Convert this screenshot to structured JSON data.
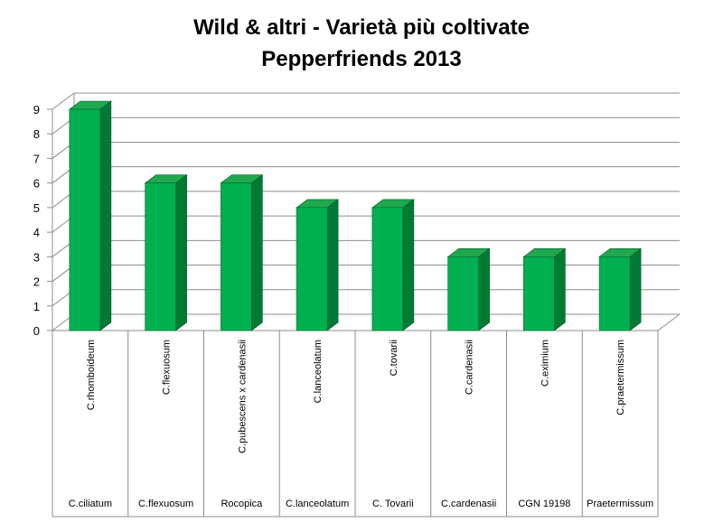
{
  "chart_data": {
    "type": "bar",
    "title": "Wild & altri - Varietà più coltivate",
    "subtitle": "Pepperfriends 2013",
    "categories": [
      "C.rhomboideum",
      "C.flexuosum",
      "C.pubescens x cardenasii",
      "C.lanceolatum",
      "C.tovarii",
      "C.cardenasii",
      "C.eximium",
      "C.praetermissum"
    ],
    "table_labels": [
      "C.ciliatum",
      "C.flexuosum",
      "Rocopica",
      "C.lanceolatum",
      "C. Tovarii",
      "C.cardenasii",
      "CGN 19198",
      "Praetermissum"
    ],
    "values": [
      9,
      6,
      6,
      5,
      5,
      3,
      3,
      3
    ],
    "ylim": [
      0,
      9
    ],
    "yticks": [
      0,
      1,
      2,
      3,
      4,
      5,
      6,
      7,
      8,
      9
    ],
    "grid": true,
    "legend": "none",
    "bar_color": "#00b050",
    "bar_side_color": "#007a35",
    "bar_top_color": "#1fa84f"
  }
}
